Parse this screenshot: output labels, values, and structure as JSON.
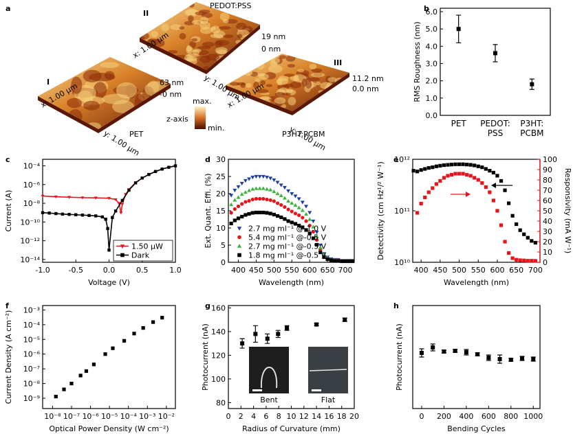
{
  "afm_panel": {
    "panel": "a",
    "images": [
      {
        "numeral": "I",
        "film": "PET",
        "z_max": "63 nm",
        "z_min": "-0 nm",
        "x_scale": "x: 1.00 µm",
        "y_scale": "y: 1.00 µm"
      },
      {
        "numeral": "II",
        "film": "PEDOT:PSS",
        "z_max": "19 nm",
        "z_min": "0 nm",
        "x_scale": "x: 1.00 µm",
        "y_scale": "y: 1.00 µm"
      },
      {
        "numeral": "III",
        "film": "P3HT:PCBM",
        "z_max": "11.2 nm",
        "z_min": "0.0 nm",
        "x_scale": "x: 1.00 µm",
        "y_scale": "y: 1.00 µm"
      }
    ],
    "colorbar": {
      "max": "max.",
      "title": "z-axis",
      "min": "min."
    }
  },
  "chart_data": [
    {
      "panel": "b",
      "type": "errorbar",
      "ylabel": "RMS Roughness (nm)",
      "categories": [
        "PET",
        "PEDOT:\nPSS",
        "P3HT:\nPCBM"
      ],
      "values": [
        5.0,
        3.6,
        1.8
      ],
      "errors": [
        0.8,
        0.5,
        0.3
      ],
      "color": "#000000",
      "ylim": [
        0,
        6.2
      ],
      "yticks": [
        {
          "value": 0,
          "label": "0.0"
        },
        {
          "value": 1,
          "label": "1.0"
        },
        {
          "value": 2,
          "label": "2.0"
        },
        {
          "value": 3,
          "label": "3.0"
        },
        {
          "value": 4,
          "label": "4.0"
        },
        {
          "value": 5,
          "label": "5.0"
        },
        {
          "value": 6,
          "label": "6.0"
        }
      ]
    },
    {
      "panel": "c",
      "type": "line",
      "xlabel": "Voltage (V)",
      "ylabel": "Current (A)",
      "yscale": "log",
      "xlim": [
        -1,
        1
      ],
      "xticks": [
        {
          "value": -1,
          "label": "-1.0"
        },
        -0.5,
        {
          "value": 0,
          "label": "0.0"
        },
        0.5,
        {
          "value": 1,
          "label": "1.0"
        }
      ],
      "ylim": [
        5e-15,
        0.0005
      ],
      "yticks": [
        {
          "value": 0.0001,
          "label": "10⁻⁴"
        },
        {
          "value": 1e-06,
          "label": "10⁻⁶"
        },
        {
          "value": 1e-08,
          "label": "10⁻⁸"
        },
        {
          "value": 1e-10,
          "label": "10⁻¹⁰"
        },
        {
          "value": 1e-12,
          "label": "10⁻¹²"
        },
        {
          "value": 1e-14,
          "label": "10⁻¹⁴"
        }
      ],
      "legend": "lower right",
      "legend_frame": true,
      "series": [
        {
          "name": "1.50 µW",
          "color": "#e8141c",
          "marker": "triangle-down",
          "x": [
            -1,
            -0.8,
            -0.6,
            -0.4,
            -0.2,
            0,
            0.1,
            0.15,
            0.18,
            0.2,
            0.25,
            0.3,
            0.4,
            0.5,
            0.6,
            0.7,
            0.8,
            0.9,
            1.0
          ],
          "values": [
            6e-08,
            5e-08,
            4.5e-08,
            4e-08,
            3.8e-08,
            3.5e-08,
            2.5e-08,
            1e-08,
            1e-09,
            8e-09,
            9e-08,
            3e-07,
            1.6e-06,
            5e-06,
            1.2e-05,
            2.5e-05,
            4.5e-05,
            7e-05,
            0.0001
          ]
        },
        {
          "name": "Dark",
          "color": "#000000",
          "marker": "square",
          "x": [
            -1,
            -0.9,
            -0.8,
            -0.7,
            -0.6,
            -0.5,
            -0.4,
            -0.3,
            -0.2,
            -0.1,
            -0.05,
            -0.02,
            0,
            0.05,
            0.1,
            0.2,
            0.3,
            0.4,
            0.5,
            0.6,
            0.7,
            0.8,
            0.9,
            1.0
          ],
          "values": [
            1e-09,
            9e-10,
            8e-10,
            7e-10,
            6.5e-10,
            6e-10,
            5.5e-10,
            5e-10,
            4.5e-10,
            3.5e-10,
            2e-10,
            2e-11,
            1e-13,
            3e-10,
            1.5e-09,
            2e-08,
            2.5e-07,
            1.5e-06,
            5e-06,
            1.2e-05,
            2.5e-05,
            4.5e-05,
            7e-05,
            0.0001
          ]
        }
      ]
    },
    {
      "panel": "d",
      "type": "scatter",
      "xlabel": "Wavelength (nm)",
      "ylabel": "Ext. Quant. Effi. (%)",
      "xlim": [
        372,
        725
      ],
      "xticks": [
        400,
        450,
        500,
        550,
        600,
        650,
        700
      ],
      "ylim": [
        0,
        30
      ],
      "yticks": [
        0,
        5,
        10,
        15,
        20,
        25,
        30
      ],
      "legend": "lower left",
      "legend_frame": false,
      "x": [
        380,
        390,
        400,
        410,
        420,
        430,
        440,
        450,
        460,
        470,
        480,
        490,
        500,
        510,
        520,
        530,
        540,
        550,
        560,
        570,
        580,
        590,
        600,
        610,
        620,
        630,
        640,
        650,
        660,
        670,
        680,
        690,
        700,
        710,
        720
      ],
      "series": [
        {
          "name": "2.7 mg ml⁻¹ @-1.0 V",
          "color": "#1f3f9f",
          "marker": "triangle-down",
          "values": [
            19.5,
            21,
            22,
            23,
            23.8,
            24.3,
            24.8,
            25,
            25,
            25,
            24.8,
            24.5,
            24,
            23.3,
            22.5,
            21.8,
            20.8,
            20,
            19.3,
            18.5,
            17.5,
            16.3,
            14.5,
            12,
            8.8,
            5,
            2.5,
            1.5,
            1,
            0.8,
            0.8,
            0.5,
            0.5,
            0.5,
            0.5
          ]
        },
        {
          "name": "5.4 mg ml⁻¹ @-0.5 V",
          "color": "#e8141c",
          "marker": "circle",
          "values": [
            14.4,
            15.5,
            16.3,
            17,
            17.6,
            17.9,
            18.3,
            18.5,
            18.5,
            18.5,
            18.3,
            18.1,
            17.8,
            17.2,
            16.7,
            16.1,
            15.4,
            14.8,
            14.2,
            13.7,
            13,
            12,
            10.7,
            8.9,
            6.5,
            3.7,
            1.9,
            1.1,
            0.7,
            0.6,
            0.6,
            0.4,
            0.4,
            0.4,
            0.4
          ]
        },
        {
          "name": "2.7 mg ml⁻¹ @-0.5 V",
          "color": "#3cb43c",
          "marker": "triangle-up",
          "values": [
            16.8,
            18.1,
            18.9,
            19.8,
            20.4,
            20.9,
            21.3,
            21.5,
            21.5,
            21.5,
            21.3,
            21.1,
            20.6,
            20,
            19.4,
            18.7,
            17.8,
            17.2,
            16.6,
            15.9,
            15.1,
            14,
            12.5,
            10.3,
            7.5,
            4.3,
            2.2,
            1.3,
            0.9,
            0.6,
            0.6,
            0.4,
            0.4,
            0.4,
            0.4
          ]
        },
        {
          "name": "1.8 mg ml⁻¹ @-0.5 V",
          "color": "#000000",
          "marker": "square",
          "values": [
            11.3,
            12.2,
            12.8,
            13.3,
            13.8,
            14.1,
            14.4,
            14.5,
            14.5,
            14.5,
            14.4,
            14.2,
            13.9,
            13.5,
            13.1,
            12.6,
            12,
            11.6,
            11.2,
            10.7,
            10.2,
            9.4,
            8.4,
            7,
            5.1,
            2.9,
            1.5,
            0.9,
            0.6,
            0.4,
            0.4,
            0.3,
            0.3,
            0.3,
            0.3
          ]
        }
      ]
    },
    {
      "panel": "e",
      "type": "scatter",
      "xlabel": "Wavelength (nm)",
      "ylabel": "Detectivity (cm Hz¹/² W⁻¹)",
      "y2label": "Responsivity (mA W⁻¹)",
      "y2color": "#e8141c",
      "yscale": "log",
      "xlim": [
        378,
        712
      ],
      "xticks": [
        400,
        450,
        500,
        550,
        600,
        650,
        700
      ],
      "ylim": [
        10000000000.0,
        1000000000000.0
      ],
      "yticks": [
        {
          "value": 10000000000.0,
          "label": "10¹⁰"
        },
        {
          "value": 100000000000.0,
          "label": "10¹¹"
        },
        {
          "value": 1000000000000.0,
          "label": "10¹²"
        }
      ],
      "y2lim": [
        0,
        100
      ],
      "y2ticks": [
        0,
        10,
        20,
        30,
        40,
        50,
        60,
        70,
        80,
        90,
        100
      ],
      "series": [
        {
          "name": "Detectivity",
          "color": "#000000",
          "marker": "square",
          "x": [
            380,
            390,
            400,
            410,
            420,
            430,
            440,
            450,
            460,
            470,
            480,
            490,
            500,
            510,
            520,
            530,
            540,
            550,
            560,
            570,
            580,
            590,
            600,
            610,
            620,
            630,
            640,
            650,
            660,
            670,
            680,
            690,
            700
          ],
          "values": [
            600000000000.0,
            580000000000.0,
            620000000000.0,
            650000000000.0,
            680000000000.0,
            700000000000.0,
            730000000000.0,
            750000000000.0,
            770000000000.0,
            780000000000.0,
            790000000000.0,
            800000000000.0,
            800000000000.0,
            800000000000.0,
            790000000000.0,
            780000000000.0,
            760000000000.0,
            730000000000.0,
            700000000000.0,
            650000000000.0,
            600000000000.0,
            550000000000.0,
            480000000000.0,
            380000000000.0,
            250000000000.0,
            140000000000.0,
            80000000000.0,
            55000000000.0,
            42000000000.0,
            35000000000.0,
            30000000000.0,
            26000000000.0,
            24000000000.0
          ]
        },
        {
          "name": "Responsivity",
          "color": "#e8141c",
          "marker": "square",
          "axis": "y2",
          "x": [
            390,
            400,
            410,
            420,
            430,
            440,
            450,
            460,
            470,
            480,
            490,
            500,
            510,
            520,
            530,
            540,
            550,
            560,
            570,
            580,
            590,
            600,
            610,
            620,
            630,
            640,
            650,
            660,
            670,
            680,
            690,
            700
          ],
          "values": [
            48,
            57,
            63,
            68,
            72,
            76,
            79,
            82,
            84,
            85,
            86,
            86,
            86,
            85,
            84,
            82,
            80,
            77,
            73,
            68,
            60,
            50,
            36,
            20,
            9,
            4,
            2.5,
            2,
            1.8,
            1.5,
            1.5,
            1.4
          ]
        }
      ]
    },
    {
      "panel": "f",
      "type": "scatter",
      "xlabel": "Optical Power Density (W cm⁻²)",
      "ylabel": "Current Density (A cm⁻²)",
      "xscale": "log",
      "yscale": "log",
      "xlim": [
        3e-09,
        0.03
      ],
      "xticks": [
        {
          "value": 1e-08,
          "label": "10⁻⁸"
        },
        {
          "value": 1e-07,
          "label": "10⁻⁷"
        },
        {
          "value": 1e-06,
          "label": "10⁻⁶"
        },
        {
          "value": 1e-05,
          "label": "10⁻⁵"
        },
        {
          "value": 0.0001,
          "label": "10⁻⁴"
        },
        {
          "value": 0.001,
          "label": "10⁻³"
        },
        {
          "value": 0.01,
          "label": "10⁻²"
        }
      ],
      "ylim": [
        2e-10,
        0.002
      ],
      "yticks": [
        {
          "value": 1e-09,
          "label": "10⁻⁹"
        },
        {
          "value": 1e-08,
          "label": "10⁻⁸"
        },
        {
          "value": 1e-07,
          "label": "10⁻⁷"
        },
        {
          "value": 1e-06,
          "label": "10⁻⁶"
        },
        {
          "value": 1e-05,
          "label": "10⁻⁵"
        },
        {
          "value": 0.0001,
          "label": "10⁻⁴"
        },
        {
          "value": 0.001,
          "label": "10⁻³"
        }
      ],
      "series": [
        {
          "name": "Current Density",
          "color": "#000000",
          "marker": "square",
          "x": [
            1.5e-08,
            4e-08,
            1e-07,
            3e-07,
            6e-07,
            1.5e-06,
            6e-06,
            1.5e-05,
            6e-05,
            0.0002,
            0.0006,
            0.002,
            0.006
          ],
          "values": [
            1.3e-09,
            4e-09,
            1e-08,
            3.5e-08,
            7e-08,
            2e-07,
            1e-06,
            2.5e-06,
            8e-06,
            2.5e-05,
            6e-05,
            0.00015,
            0.0003
          ]
        }
      ]
    },
    {
      "panel": "g",
      "type": "errorbar",
      "xlabel": "Radius of Curvature (mm)",
      "ylabel": "Photocurrent (nA)",
      "color": "#000000",
      "xlim": [
        0,
        20
      ],
      "xticks": [
        0,
        2,
        4,
        6,
        8,
        10,
        12,
        14,
        16,
        18,
        20
      ],
      "ylim": [
        75,
        162
      ],
      "yticks": [
        80,
        100,
        120,
        140,
        160
      ],
      "x": [
        2.2,
        4.3,
        6.2,
        7.9,
        9.3,
        14,
        18.5
      ],
      "values": [
        130,
        138,
        134,
        138,
        143,
        146,
        150
      ],
      "errors": [
        4,
        7,
        4,
        3,
        2,
        1,
        1.5
      ],
      "annotations": [
        "Bent",
        "Flat"
      ]
    },
    {
      "panel": "h",
      "type": "errorbar",
      "xlabel": "Bending Cycles",
      "ylabel": "Photocurrent (nA)",
      "color": "#000000",
      "xlim": [
        -80,
        1060
      ],
      "xticks": [
        0,
        200,
        400,
        600,
        800,
        1000
      ],
      "ylim": [
        100,
        250
      ],
      "x": [
        0,
        100,
        200,
        300,
        400,
        500,
        600,
        700,
        800,
        900,
        1000
      ],
      "values": [
        181,
        189,
        183,
        184,
        182,
        179,
        174,
        172,
        171,
        173,
        172
      ],
      "errors": [
        6,
        5,
        2,
        2,
        4,
        2,
        4,
        6,
        2,
        3,
        3
      ]
    }
  ]
}
